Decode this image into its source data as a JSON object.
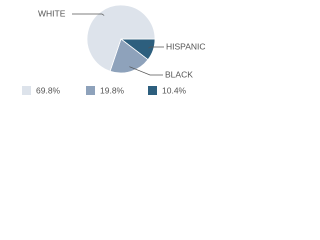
{
  "chart_data": {
    "type": "pie",
    "categories": [
      "WHITE",
      "BLACK",
      "HISPANIC"
    ],
    "values": [
      69.8,
      19.8,
      10.4
    ],
    "value_labels": [
      "69.8%",
      "19.8%",
      "10.4%"
    ],
    "colors": [
      "#dde3eb",
      "#8ea2bb",
      "#2d5f7e"
    ],
    "legend": "bottom"
  }
}
